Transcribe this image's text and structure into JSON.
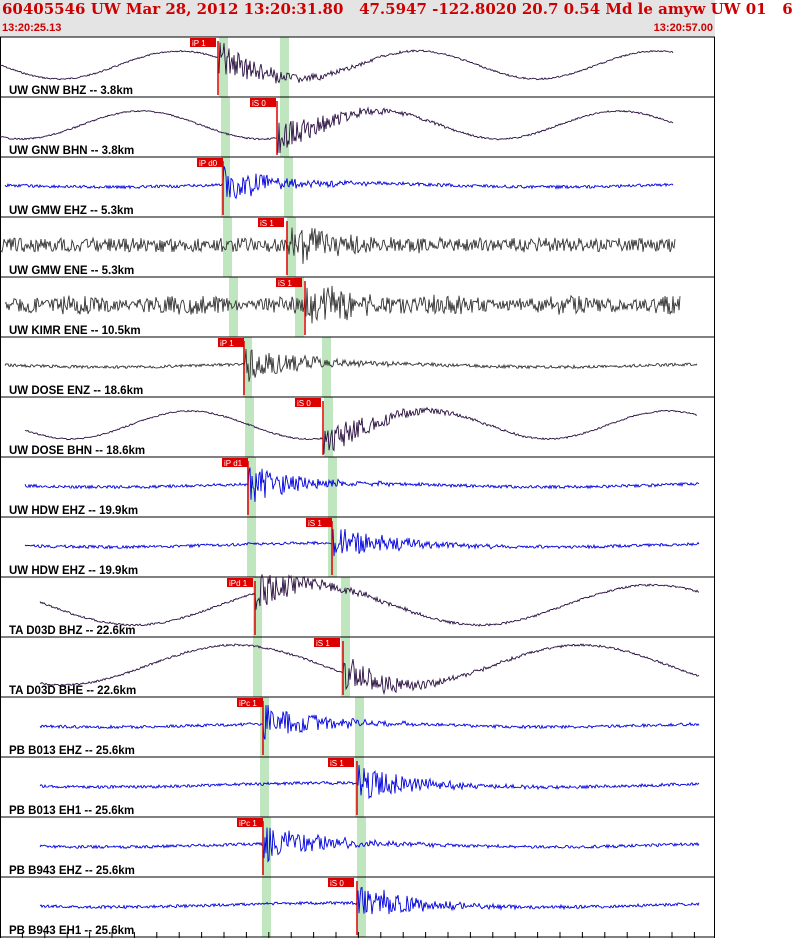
{
  "header": {
    "title": "60405546 UW Mar 28, 2012 13:20:31.80   47.5947 -122.8020 20.7 0.54 Md le amyw UW 01   6",
    "start_time": "13:20:25.13",
    "end_time": "13:20:57.00"
  },
  "colors": {
    "header_bg": "#e4e4e4",
    "header_text": "#cc0000",
    "trace_dark": "#2a1040",
    "trace_gray": "#333333",
    "trace_blue": "#0000dd",
    "pick_marker": "#dd0000",
    "p_window": "#bfe6bf",
    "s_window": "#bfe6bf"
  },
  "panels": [
    {
      "label": "UW GNW BHZ -- 3.8km",
      "pick": "iP 1",
      "trace": "dark",
      "style": "lowfreq"
    },
    {
      "label": "UW GNW BHN -- 3.8km",
      "pick": "iS 0",
      "trace": "dark",
      "style": "lowfreq"
    },
    {
      "label": "UW GMW EHZ -- 5.3km",
      "pick": "iP d0",
      "trace": "blue",
      "style": "quiet"
    },
    {
      "label": "UW GMW ENE -- 5.3km",
      "pick": "iS 1",
      "trace": "gray",
      "style": "noisy"
    },
    {
      "label": "UW KIMR ENE -- 10.5km",
      "pick": "iS 1",
      "trace": "gray",
      "style": "bursty"
    },
    {
      "label": "UW DOSE ENZ -- 18.6km",
      "pick": "iP 1",
      "trace": "gray",
      "style": "quiet"
    },
    {
      "label": "UW DOSE BHN -- 18.6km",
      "pick": "iS 0",
      "trace": "dark",
      "style": "lowfreq"
    },
    {
      "label": "UW HDW EHZ -- 19.9km",
      "pick": "iP d1",
      "trace": "blue",
      "style": "quiet"
    },
    {
      "label": "UW HDW EHZ -- 19.9km",
      "pick": "iS 1",
      "trace": "blue",
      "style": "quiet"
    },
    {
      "label": "TA D03D BHZ -- 22.6km",
      "pick": "iPd 1",
      "trace": "dark",
      "style": "bigwave"
    },
    {
      "label": "TA D03D BHE -- 22.6km",
      "pick": "iS 1",
      "trace": "dark",
      "style": "bigwave"
    },
    {
      "label": "PB B013 EHZ -- 25.6km",
      "pick": "iPc 1",
      "trace": "blue",
      "style": "quiet"
    },
    {
      "label": "PB B013 EH1 -- 25.6km",
      "pick": "iS 1",
      "trace": "blue",
      "style": "quiet"
    },
    {
      "label": "PB B943 EHZ -- 25.6km",
      "pick": "iPc 1",
      "trace": "blue",
      "style": "quiet"
    },
    {
      "label": "PB B943 EH1 -- 25.6km",
      "pick": "iS 0",
      "trace": "blue",
      "style": "quiet"
    }
  ]
}
